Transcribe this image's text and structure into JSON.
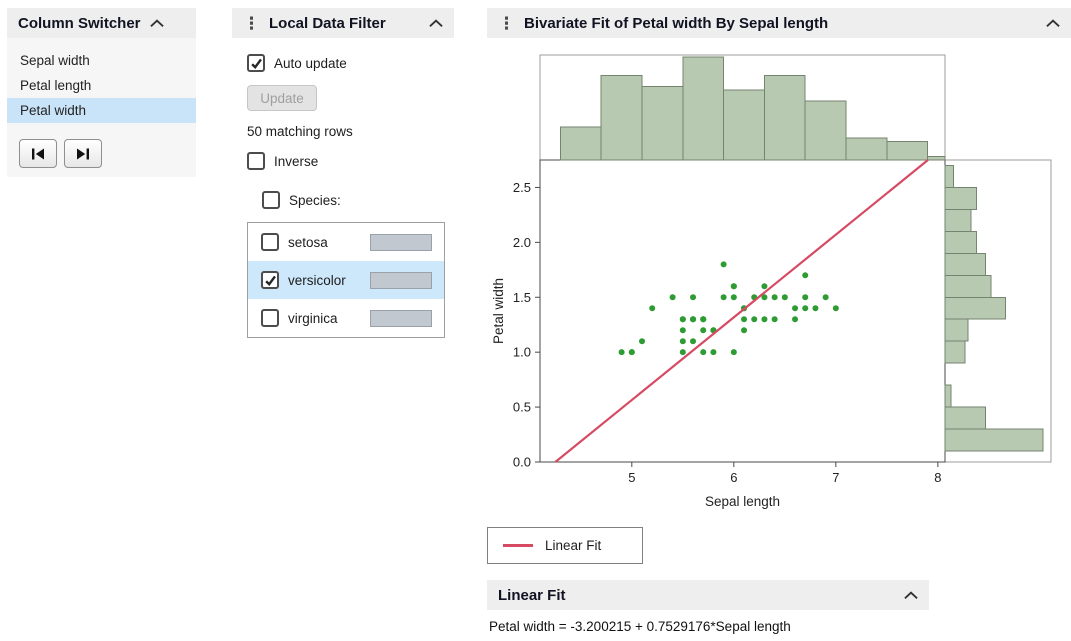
{
  "column_switcher": {
    "title": "Column Switcher",
    "items": [
      {
        "label": "Sepal width",
        "selected": false
      },
      {
        "label": "Petal length",
        "selected": false
      },
      {
        "label": "Petal width",
        "selected": true
      }
    ]
  },
  "local_data_filter": {
    "title": "Local Data Filter",
    "auto_update": {
      "label": "Auto update",
      "checked": true
    },
    "update_button_label": "Update",
    "status_text": "50 matching rows",
    "inverse": {
      "label": "Inverse",
      "checked": false
    },
    "species": {
      "label": "Species:",
      "checked": false
    },
    "levels": [
      {
        "label": "setosa",
        "checked": false,
        "selected": false
      },
      {
        "label": "versicolor",
        "checked": true,
        "selected": true
      },
      {
        "label": "virginica",
        "checked": false,
        "selected": false
      }
    ]
  },
  "bivariate": {
    "title": "Bivariate Fit of Petal width By Sepal length",
    "legend_label": "Linear Fit",
    "fit_section_title": "Linear Fit",
    "equation": "Petal width = -3.200215 + 0.7529176*Sepal length"
  },
  "chart_data": {
    "type": "scatter",
    "title": "Bivariate Fit of Petal width By Sepal length",
    "xlabel": "Sepal length",
    "ylabel": "Petal width",
    "xlim": [
      4.1,
      8.07
    ],
    "ylim": [
      0,
      2.75
    ],
    "xticks": [
      5,
      6,
      7,
      8
    ],
    "xtick_labels": [
      "5",
      "6",
      "7",
      "8"
    ],
    "yticks": [
      0,
      0.5,
      1,
      1.5,
      2,
      2.5
    ],
    "ytick_labels": [
      "0.0",
      "0.5",
      "1.0",
      "1.5",
      "2.0",
      "2.5"
    ],
    "grid": false,
    "point_color": "#2e9b33",
    "hist_fill": "#b8c9b2",
    "hist_stroke": "#74846f",
    "points": [
      [
        7.0,
        1.4
      ],
      [
        6.4,
        1.5
      ],
      [
        6.9,
        1.5
      ],
      [
        5.5,
        1.3
      ],
      [
        6.5,
        1.5
      ],
      [
        5.7,
        1.3
      ],
      [
        6.3,
        1.6
      ],
      [
        4.9,
        1.0
      ],
      [
        6.6,
        1.3
      ],
      [
        5.2,
        1.4
      ],
      [
        5.0,
        1.0
      ],
      [
        5.9,
        1.5
      ],
      [
        6.0,
        1.0
      ],
      [
        6.1,
        1.4
      ],
      [
        5.6,
        1.3
      ],
      [
        6.7,
        1.4
      ],
      [
        5.6,
        1.5
      ],
      [
        5.8,
        1.0
      ],
      [
        6.2,
        1.5
      ],
      [
        5.6,
        1.1
      ],
      [
        5.9,
        1.8
      ],
      [
        6.1,
        1.3
      ],
      [
        6.3,
        1.5
      ],
      [
        6.1,
        1.2
      ],
      [
        6.4,
        1.3
      ],
      [
        6.6,
        1.4
      ],
      [
        6.8,
        1.4
      ],
      [
        6.7,
        1.7
      ],
      [
        6.0,
        1.5
      ],
      [
        5.7,
        1.0
      ],
      [
        5.5,
        1.1
      ],
      [
        5.5,
        1.0
      ],
      [
        5.8,
        1.2
      ],
      [
        6.0,
        1.6
      ],
      [
        5.4,
        1.5
      ],
      [
        6.0,
        1.6
      ],
      [
        6.7,
        1.5
      ],
      [
        6.3,
        1.3
      ],
      [
        5.6,
        1.3
      ],
      [
        5.5,
        1.3
      ],
      [
        5.5,
        1.2
      ],
      [
        6.1,
        1.4
      ],
      [
        5.8,
        1.2
      ],
      [
        5.0,
        1.0
      ],
      [
        5.6,
        1.3
      ],
      [
        5.7,
        1.2
      ],
      [
        5.7,
        1.3
      ],
      [
        6.2,
        1.3
      ],
      [
        5.1,
        1.1
      ],
      [
        5.7,
        1.3
      ]
    ],
    "fit": {
      "type": "linear",
      "label": "Linear Fit",
      "intercept": -3.200215,
      "slope": 0.7529176,
      "color": "#d64a63",
      "equation": "Petal width = -3.200215 + 0.7529176*Sepal length"
    },
    "top_histogram": {
      "variable": "Sepal length",
      "bin_start": 4.3,
      "bin_width": 0.4,
      "counts": [
        9,
        23,
        20,
        28,
        19,
        23,
        16,
        6,
        5,
        1
      ]
    },
    "right_histogram": {
      "variable": "Petal width",
      "bin_start": 0.1,
      "bin_width": 0.2,
      "counts": [
        34,
        14,
        2,
        0,
        7,
        8,
        21,
        16,
        14,
        11,
        9,
        11,
        3
      ]
    },
    "legend": {
      "position": "bottom-left",
      "entries": [
        {
          "label": "Linear Fit",
          "color": "#d64a63"
        }
      ]
    }
  }
}
